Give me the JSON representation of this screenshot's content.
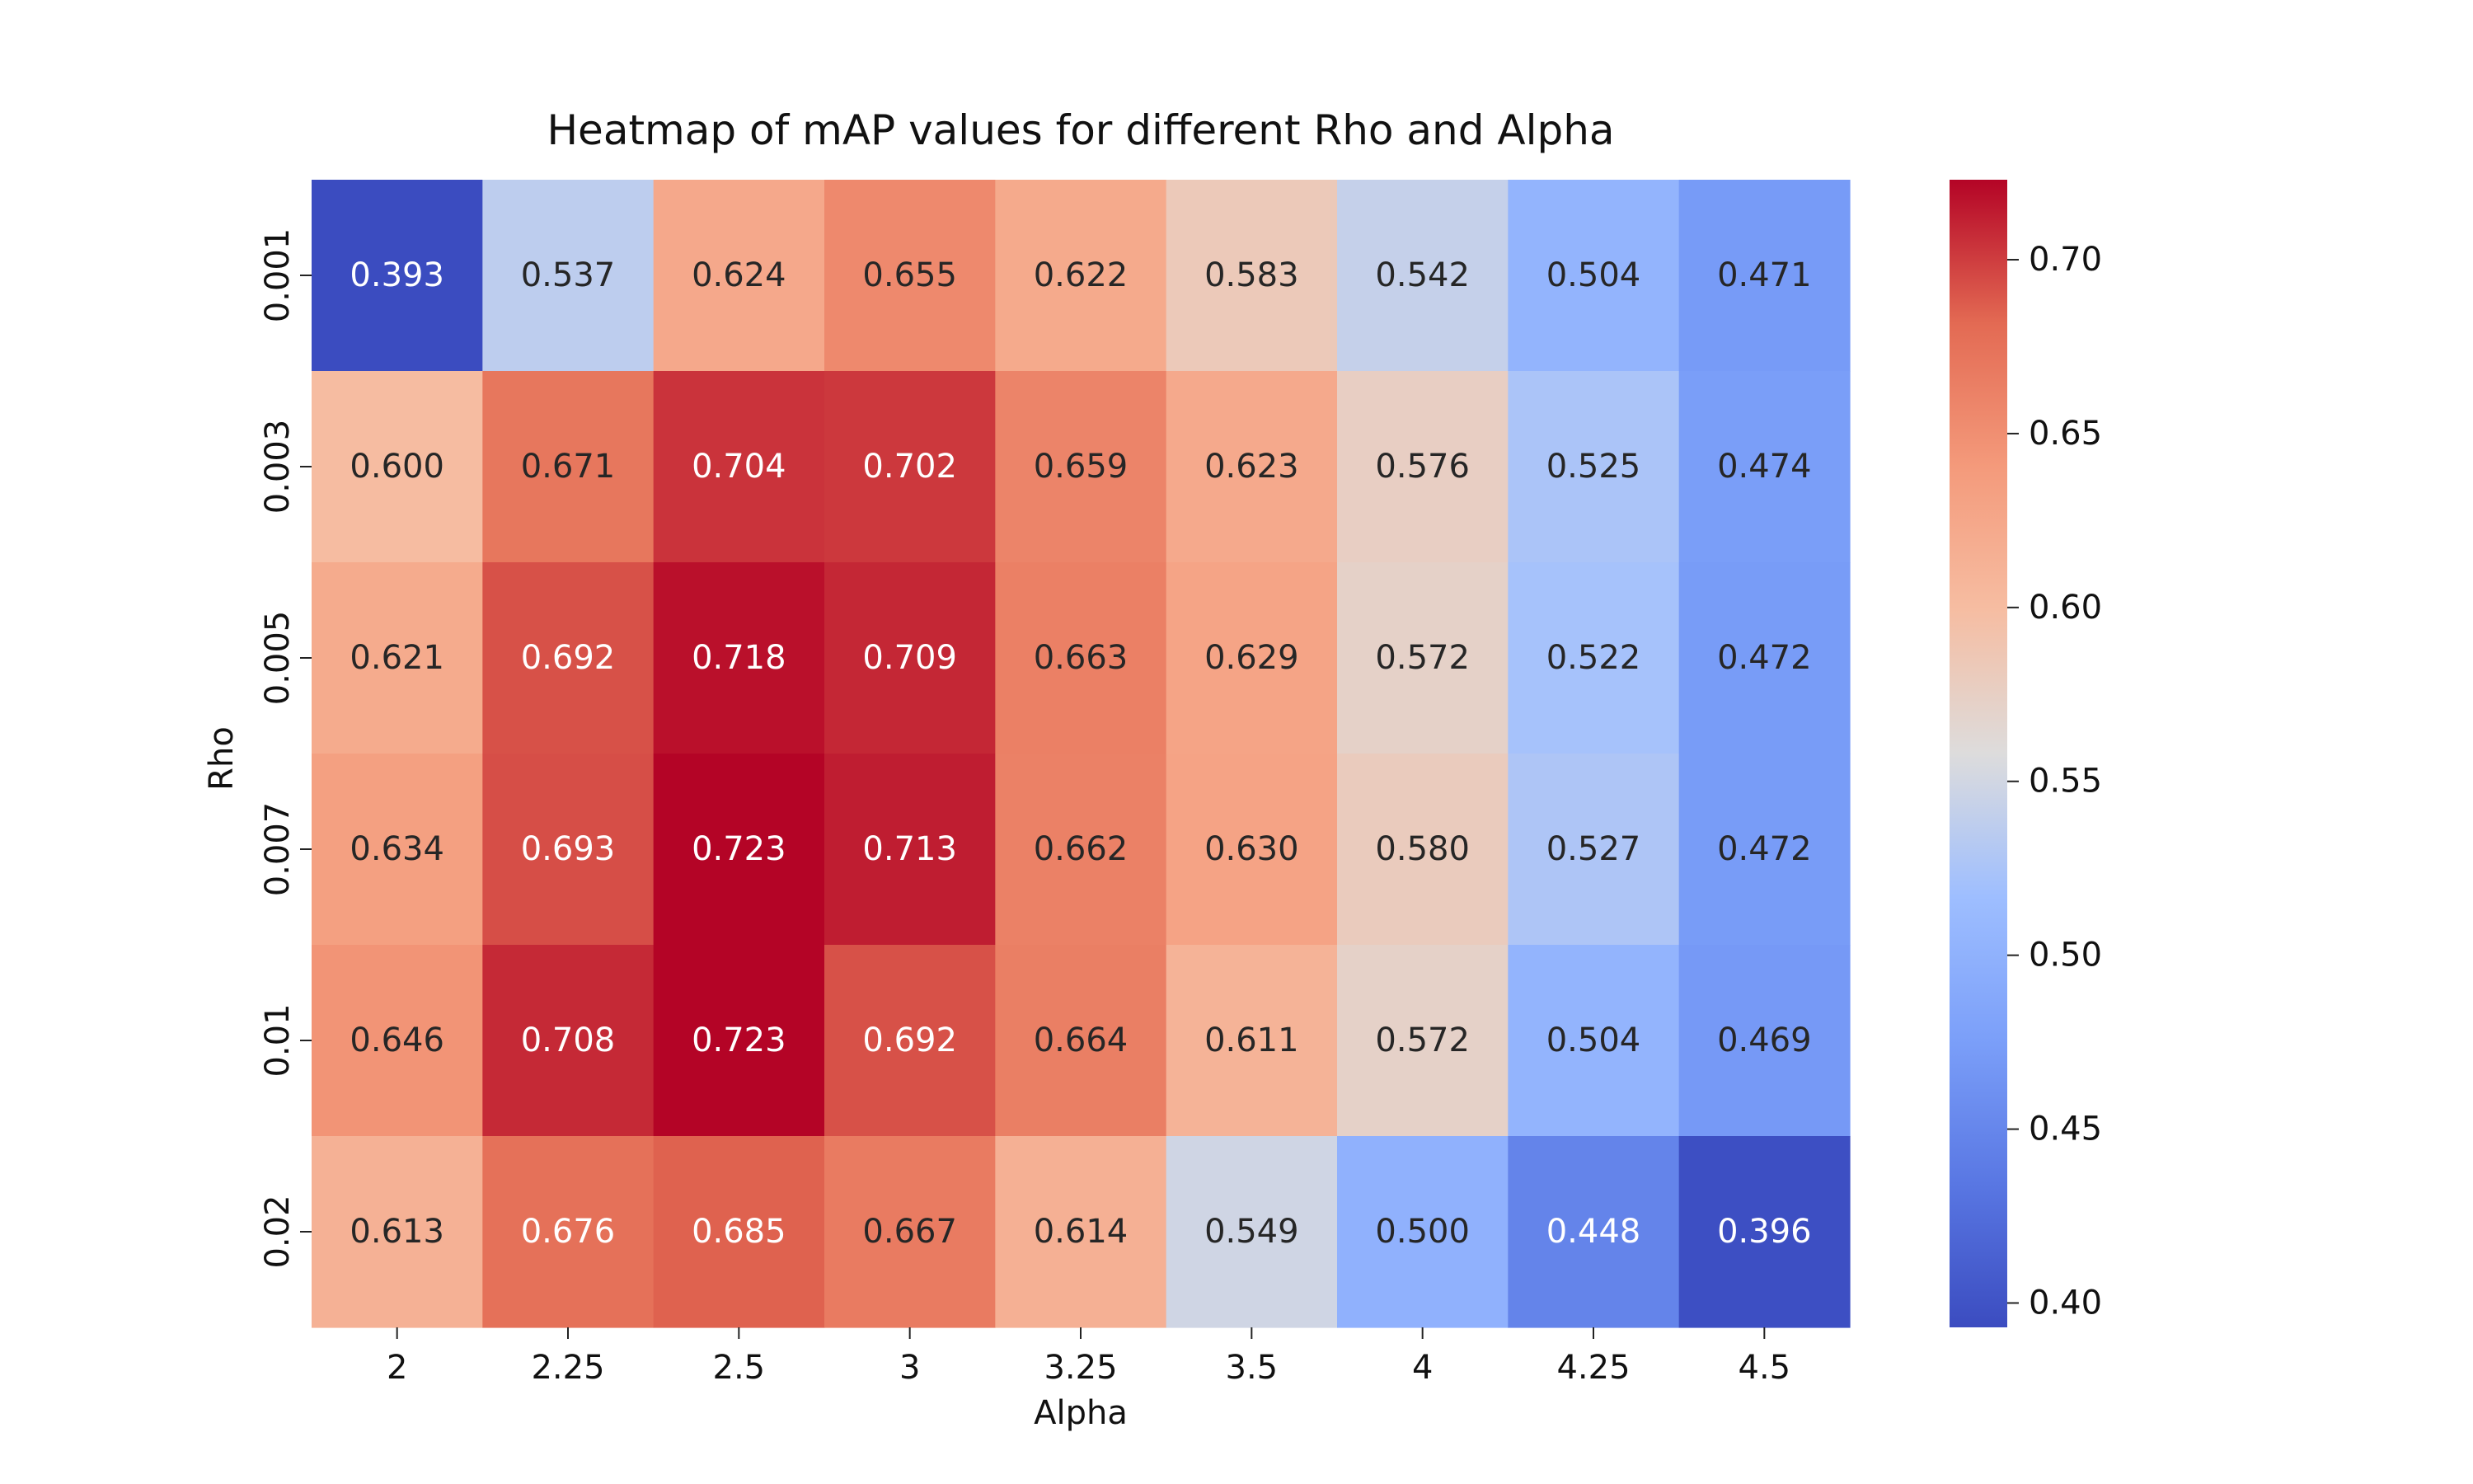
{
  "chart_data": {
    "type": "heatmap",
    "title": "Heatmap of mAP values for different Rho and Alpha",
    "xlabel": "Alpha",
    "ylabel": "Rho",
    "x_categories": [
      "2",
      "2.25",
      "2.5",
      "3",
      "3.25",
      "3.5",
      "4",
      "4.25",
      "4.5"
    ],
    "y_categories": [
      "0.001",
      "0.003",
      "0.005",
      "0.007",
      "0.01",
      "0.02"
    ],
    "values": [
      [
        0.393,
        0.537,
        0.624,
        0.655,
        0.622,
        0.583,
        0.542,
        0.504,
        0.471
      ],
      [
        0.6,
        0.671,
        0.704,
        0.702,
        0.659,
        0.623,
        0.576,
        0.525,
        0.474
      ],
      [
        0.621,
        0.692,
        0.718,
        0.709,
        0.663,
        0.629,
        0.572,
        0.522,
        0.472
      ],
      [
        0.634,
        0.693,
        0.723,
        0.713,
        0.662,
        0.63,
        0.58,
        0.527,
        0.472
      ],
      [
        0.646,
        0.708,
        0.723,
        0.692,
        0.664,
        0.611,
        0.572,
        0.504,
        0.469
      ],
      [
        0.613,
        0.676,
        0.685,
        0.667,
        0.614,
        0.549,
        0.5,
        0.448,
        0.396
      ]
    ],
    "value_format": 3,
    "colormap": "coolwarm",
    "vmin": 0.393,
    "vmax": 0.723,
    "colorbar_ticks": [
      "0.40",
      "0.45",
      "0.50",
      "0.55",
      "0.60",
      "0.65",
      "0.70"
    ],
    "colorbar_tick_values": [
      0.4,
      0.45,
      0.5,
      0.55,
      0.6,
      0.65,
      0.7
    ]
  }
}
